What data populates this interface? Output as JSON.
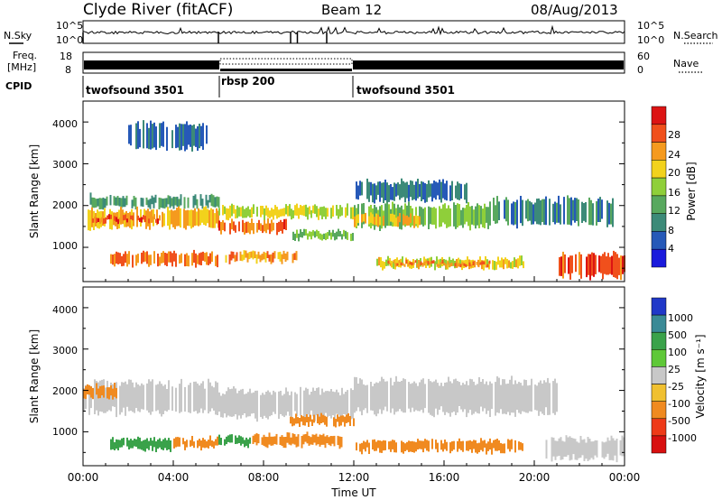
{
  "header": {
    "station": "Clyde River (fitACF)",
    "beam": "Beam 12",
    "date": "08/Aug/2013"
  },
  "noise_panel": {
    "left_label": "N.Sky",
    "right_label": "N.Search",
    "left_ticks": [
      "10^5",
      "10^0"
    ],
    "right_ticks": [
      "10^5",
      "10^0"
    ]
  },
  "freq_panel": {
    "left_label_line1": "Freq.",
    "left_label_line2": "[MHz]",
    "right_label": "Nave",
    "left_ticks": [
      "18",
      "8"
    ],
    "right_ticks": [
      "60",
      "0"
    ]
  },
  "cpid": {
    "label": "CPID",
    "segments": [
      {
        "name": "twofsound 3501",
        "start_hour": 0,
        "end_hour": 6
      },
      {
        "name": "rbsp 200",
        "start_hour": 6,
        "end_hour": 12
      },
      {
        "name": "twofsound 3501",
        "start_hour": 12,
        "end_hour": 24
      }
    ]
  },
  "power_panel": {
    "ylabel": "Slant Range [km]",
    "yticks": [
      "1000",
      "2000",
      "3000",
      "4000"
    ],
    "colorbar_label": "Power [dB]",
    "colorbar_ticks": [
      "4",
      "8",
      "12",
      "16",
      "20",
      "24",
      "28"
    ],
    "colorbar_colors": [
      "#1a1adc",
      "#2659b8",
      "#3c8a78",
      "#58a85e",
      "#8fcf3a",
      "#f2d21c",
      "#f59a1e",
      "#f0501c",
      "#dc1414"
    ]
  },
  "velocity_panel": {
    "ylabel": "Slant Range [km]",
    "yticks": [
      "1000",
      "2000",
      "3000",
      "4000"
    ],
    "colorbar_label": "Velocity [m s⁻¹]",
    "colorbar_ticks": [
      "1000",
      "500",
      "100",
      "25",
      "-25",
      "-100",
      "-500",
      "-1000"
    ],
    "colorbar_colors": [
      "#2038c8",
      "#3a8a96",
      "#3aa24a",
      "#5fc838",
      "#c8c8c8",
      "#f0c030",
      "#f08a20",
      "#ee3a18",
      "#d81010"
    ]
  },
  "xaxis": {
    "label": "Time UT",
    "ticks": [
      "00:00",
      "04:00",
      "08:00",
      "12:00",
      "16:00",
      "20:00",
      "00:00"
    ]
  },
  "chart_data": {
    "type": "heatmap",
    "title": "Clyde River (fitACF)",
    "subtitle": "Beam 12",
    "x_range_hours": [
      0,
      24
    ],
    "y_range_km": [
      180,
      4500
    ],
    "xlabel": "Time UT",
    "ylabel": "Slant Range [km]",
    "power_bands": [
      {
        "t0": 0.3,
        "t1": 6.0,
        "r0": 1950,
        "r1": 2250,
        "power_db": 10
      },
      {
        "t0": 0.2,
        "t1": 6.0,
        "r0": 1450,
        "r1": 1950,
        "power_db": 22
      },
      {
        "t0": 0.4,
        "t1": 3.5,
        "r0": 1600,
        "r1": 1750,
        "power_db": 28
      },
      {
        "t0": 1.2,
        "t1": 6.0,
        "r0": 550,
        "r1": 900,
        "power_db": 26
      },
      {
        "t0": 6.0,
        "t1": 9.0,
        "r0": 1350,
        "r1": 1650,
        "power_db": 27
      },
      {
        "t0": 6.0,
        "t1": 12.0,
        "r0": 1700,
        "r1": 2000,
        "power_db": 18
      },
      {
        "t0": 6.3,
        "t1": 9.5,
        "r0": 650,
        "r1": 900,
        "power_db": 24
      },
      {
        "t0": 9.2,
        "t1": 12.0,
        "r0": 1200,
        "r1": 1400,
        "power_db": 14
      },
      {
        "t0": 12.0,
        "t1": 18.0,
        "r0": 1450,
        "r1": 2050,
        "power_db": 14
      },
      {
        "t0": 12.0,
        "t1": 15.0,
        "r0": 1500,
        "r1": 1800,
        "power_db": 22
      },
      {
        "t0": 13.0,
        "t1": 19.5,
        "r0": 500,
        "r1": 750,
        "power_db": 19
      },
      {
        "t0": 13.5,
        "t1": 18.0,
        "r0": 550,
        "r1": 650,
        "power_db": 26
      },
      {
        "t0": 18.0,
        "t1": 23.5,
        "r0": 1500,
        "r1": 2200,
        "power_db": 8
      },
      {
        "t0": 21.0,
        "t1": 24.0,
        "r0": 250,
        "r1": 900,
        "power_db": 28
      },
      {
        "t0": 2.0,
        "t1": 5.5,
        "r0": 3300,
        "r1": 4000,
        "power_db": 6
      },
      {
        "t0": 12.0,
        "t1": 17.0,
        "r0": 2100,
        "r1": 2600,
        "power_db": 6
      }
    ],
    "velocity_bands": [
      {
        "t0": 0.0,
        "t1": 6.0,
        "r0": 1400,
        "r1": 2250,
        "velocity": 0
      },
      {
        "t0": 0.0,
        "t1": 1.5,
        "r0": 1800,
        "r1": 2150,
        "velocity": -200
      },
      {
        "t0": 1.2,
        "t1": 4.0,
        "r0": 550,
        "r1": 850,
        "velocity": 150
      },
      {
        "t0": 4.0,
        "t1": 6.0,
        "r0": 600,
        "r1": 850,
        "velocity": -200
      },
      {
        "t0": 6.0,
        "t1": 7.5,
        "r0": 650,
        "r1": 900,
        "velocity": 150
      },
      {
        "t0": 7.5,
        "t1": 11.5,
        "r0": 650,
        "r1": 950,
        "velocity": -300
      },
      {
        "t0": 6.0,
        "t1": 12.0,
        "r0": 1300,
        "r1": 2050,
        "velocity": 0
      },
      {
        "t0": 12.0,
        "t1": 19.5,
        "r0": 500,
        "r1": 800,
        "velocity": -300
      },
      {
        "t0": 12.0,
        "t1": 21.0,
        "r0": 1400,
        "r1": 2300,
        "velocity": 0
      },
      {
        "t0": 20.5,
        "t1": 24.0,
        "r0": 300,
        "r1": 900,
        "velocity": 0
      },
      {
        "t0": 9.0,
        "t1": 12.0,
        "r0": 1150,
        "r1": 1400,
        "velocity": -150
      }
    ]
  }
}
